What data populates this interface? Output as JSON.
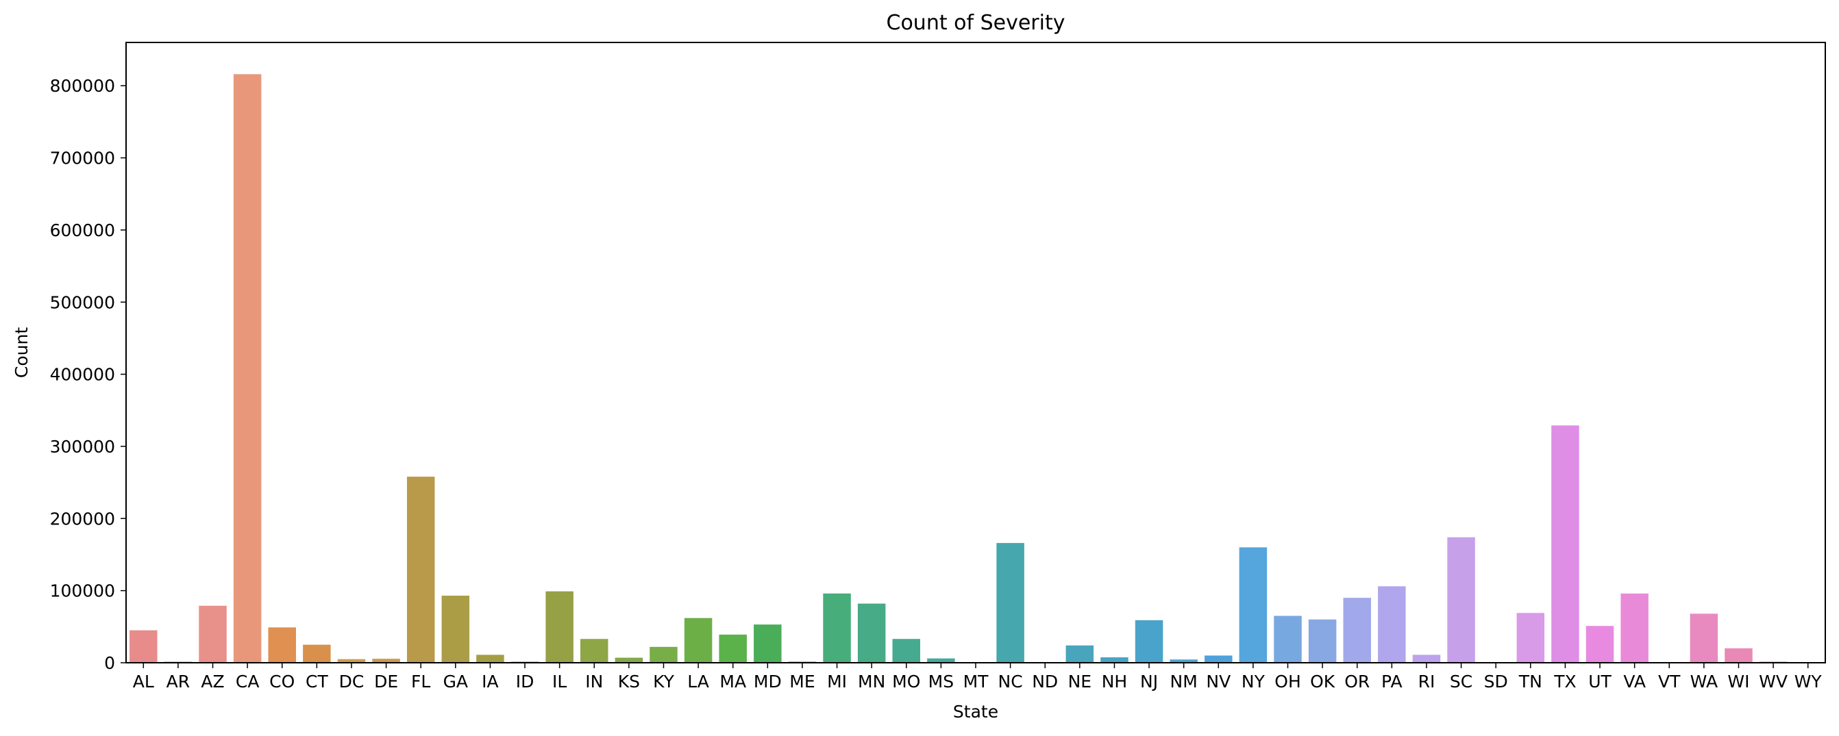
{
  "chart_data": {
    "type": "bar",
    "title": "Count of Severity",
    "xlabel": "State",
    "ylabel": "Count",
    "ylim": [
      0,
      860000
    ],
    "yticks": [
      0,
      100000,
      200000,
      300000,
      400000,
      500000,
      600000,
      700000,
      800000
    ],
    "yticklabels": [
      "0",
      "100000",
      "200000",
      "300000",
      "400000",
      "500000",
      "600000",
      "700000",
      "800000"
    ],
    "grid": false,
    "categories": [
      "AL",
      "AR",
      "AZ",
      "CA",
      "CO",
      "CT",
      "DC",
      "DE",
      "FL",
      "GA",
      "IA",
      "ID",
      "IL",
      "IN",
      "KS",
      "KY",
      "LA",
      "MA",
      "MD",
      "ME",
      "MI",
      "MN",
      "MO",
      "MS",
      "MT",
      "NC",
      "ND",
      "NE",
      "NH",
      "NJ",
      "NM",
      "NV",
      "NY",
      "OH",
      "OK",
      "OR",
      "PA",
      "RI",
      "SC",
      "SD",
      "TN",
      "TX",
      "UT",
      "VA",
      "VT",
      "WA",
      "WI",
      "WV",
      "WY"
    ],
    "values": [
      45000,
      1500,
      79000,
      816000,
      49000,
      25000,
      5000,
      5500,
      258000,
      93000,
      11000,
      1500,
      99000,
      33000,
      7000,
      22000,
      62000,
      39000,
      53000,
      1500,
      96000,
      82000,
      33000,
      6000,
      500,
      166000,
      500,
      24000,
      7500,
      59000,
      4500,
      10000,
      160000,
      65000,
      60000,
      90000,
      106000,
      11000,
      174000,
      500,
      69000,
      329000,
      51000,
      96000,
      500,
      68000,
      20000,
      1500,
      500
    ],
    "colors": [
      "#e88b8b",
      "#e89080",
      "#e8908a",
      "#e8977a",
      "#e09050",
      "#d8904a",
      "#cf9b4a",
      "#c99a4a",
      "#b89a4a",
      "#ab9d46",
      "#a49e42",
      "#9aa043",
      "#96a044",
      "#8fa646",
      "#83a948",
      "#79ad48",
      "#6caf47",
      "#5cb24a",
      "#4aae58",
      "#47ae6a",
      "#47ad7a",
      "#46ab86",
      "#45aa90",
      "#46a99c",
      "#48a8a6",
      "#46a7ad",
      "#48a6b4",
      "#48a5bc",
      "#49a3c2",
      "#4aa3cb",
      "#4ba3d4",
      "#4ea2dc",
      "#55a6dc",
      "#78a8e0",
      "#88a8e4",
      "#a1a9eb",
      "#b0a6ed",
      "#bda2ec",
      "#c7a0ea",
      "#d09be8",
      "#d89be7",
      "#df8ee6",
      "#e88ae0",
      "#e98ad8",
      "#ea8acb",
      "#e88ac0",
      "#e88ab5",
      "#e88aa8",
      "#e88a9c"
    ]
  }
}
